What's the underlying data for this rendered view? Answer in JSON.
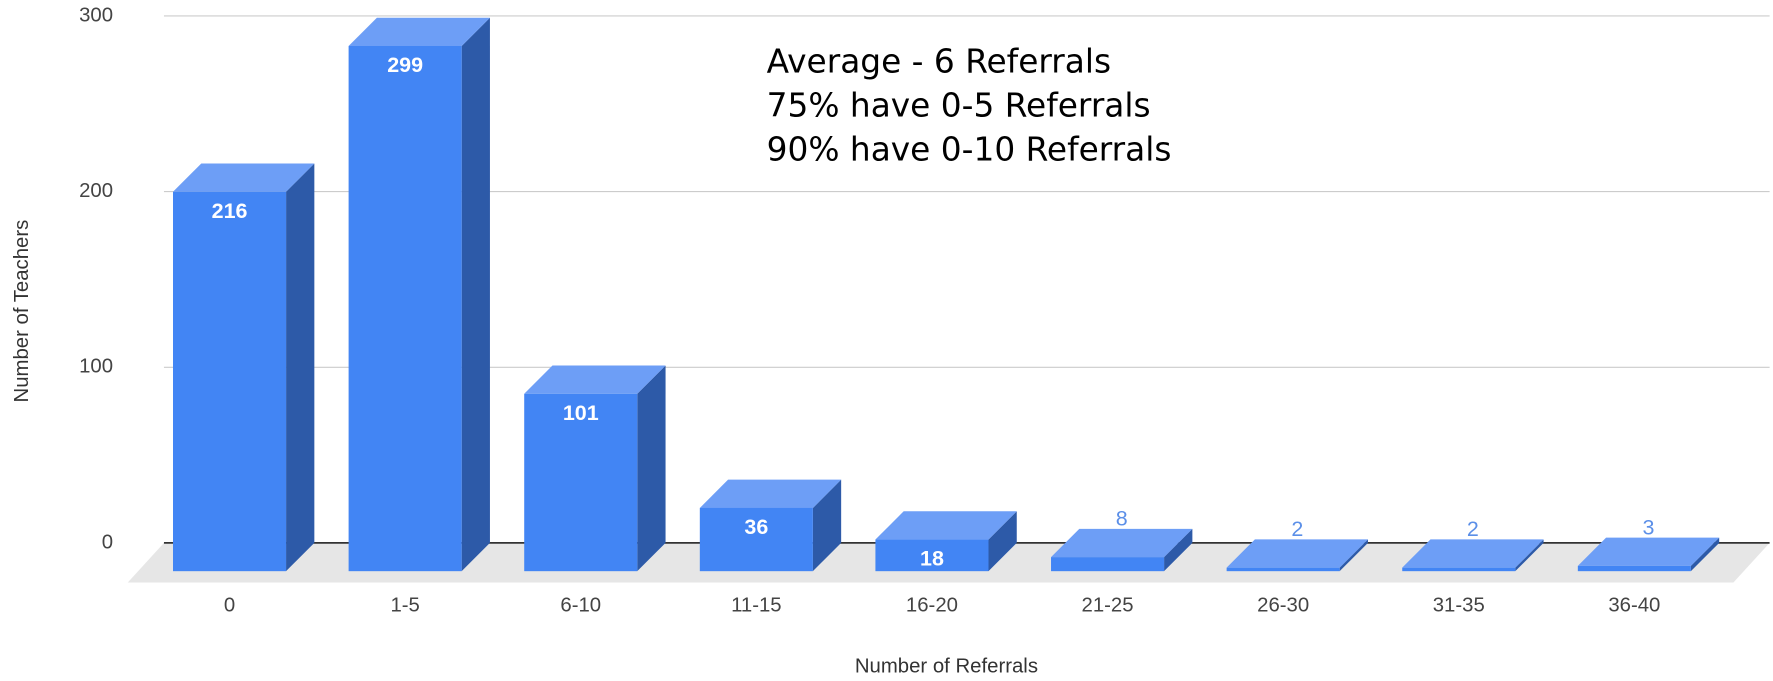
{
  "chart_data": {
    "type": "bar",
    "categories": [
      "0",
      "1-5",
      "6-10",
      "11-15",
      "16-20",
      "21-25",
      "26-30",
      "31-35",
      "36-40"
    ],
    "values": [
      216,
      299,
      101,
      36,
      18,
      8,
      2,
      2,
      3
    ],
    "color": "#4285f4",
    "ylim": [
      0,
      300
    ],
    "yticks": [
      0,
      100,
      200,
      300
    ],
    "grid": true,
    "xlabel": "Number of Referrals",
    "ylabel": "Number of Teachers",
    "annotations": [
      "Average - 6 Referrals",
      "75% have 0-5 Referrals",
      "90% have 0-10 Referrals"
    ]
  }
}
